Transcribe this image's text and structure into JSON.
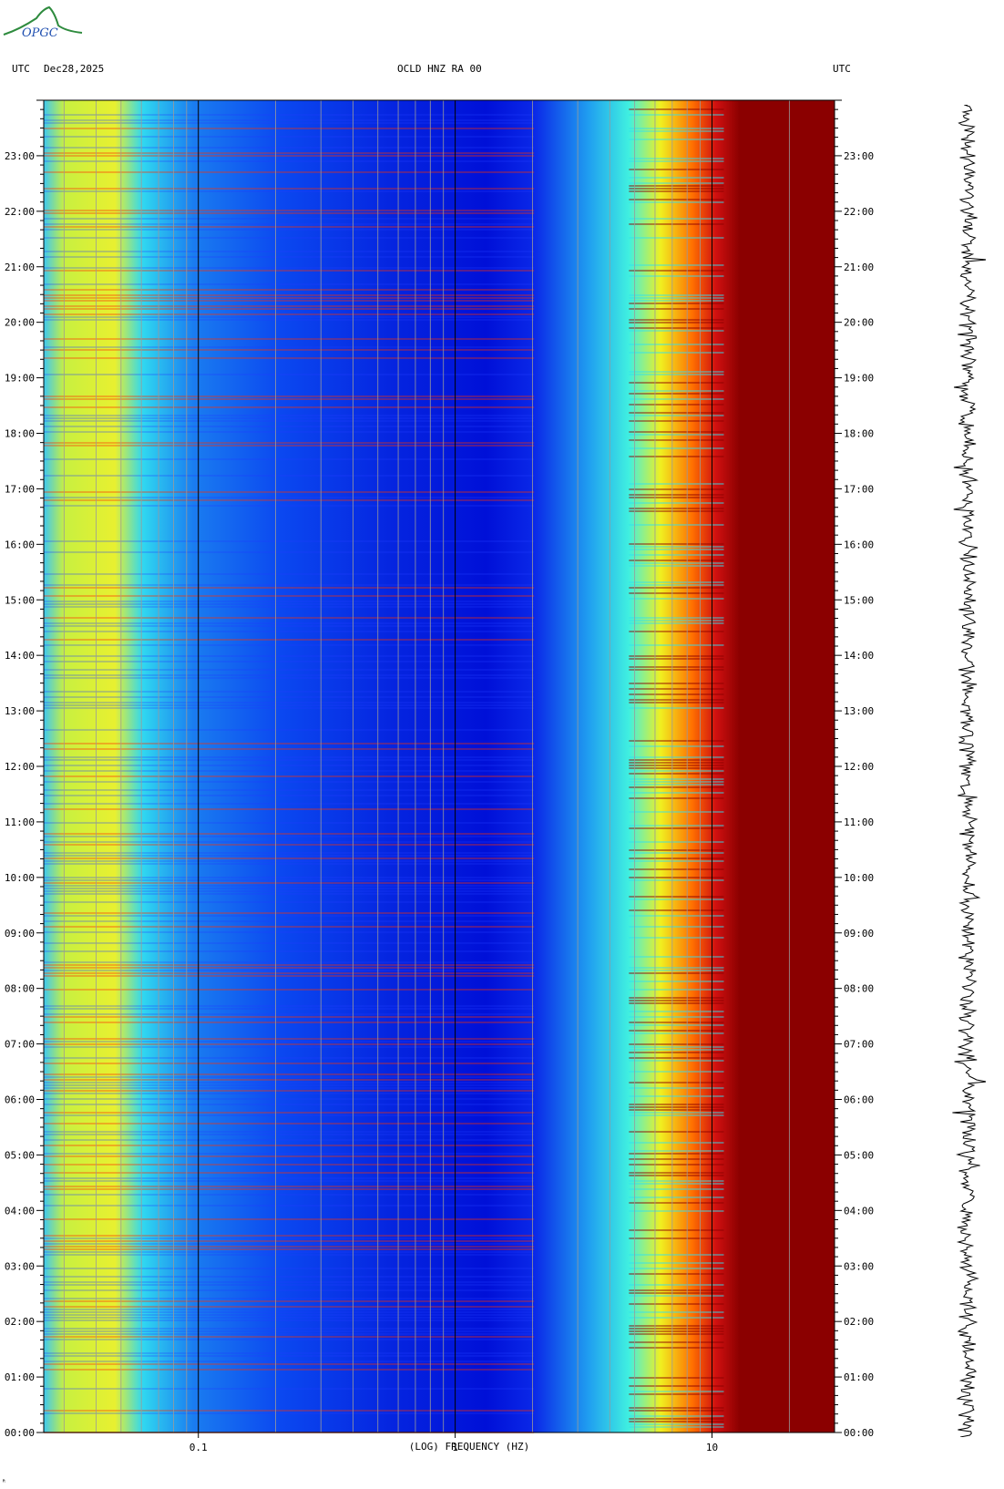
{
  "header": {
    "left_tz": "UTC",
    "date": "Dec28,2025",
    "station": "OCLD HNZ RA 00",
    "right_tz": "UTC"
  },
  "logo": {
    "text": "OPGC",
    "icon": "volcano-logo"
  },
  "chart_data": {
    "type": "heatmap",
    "title": "OCLD HNZ RA 00",
    "xlabel": "(LOG) FREQUENCY (HZ)",
    "xscale": "log",
    "xlim": [
      0.025,
      30
    ],
    "x_ticks": [
      {
        "value": 0.1,
        "label": "0.1"
      },
      {
        "value": 1,
        "label": "1"
      },
      {
        "value": 10,
        "label": "10"
      }
    ],
    "ylabel": "UTC",
    "ylim": [
      "00:00",
      "24:00"
    ],
    "y_ticks": [
      "00:00",
      "01:00",
      "02:00",
      "03:00",
      "04:00",
      "05:00",
      "06:00",
      "07:00",
      "08:00",
      "09:00",
      "10:00",
      "11:00",
      "12:00",
      "13:00",
      "14:00",
      "15:00",
      "16:00",
      "17:00",
      "18:00",
      "19:00",
      "20:00",
      "21:00",
      "22:00",
      "23:00"
    ],
    "colormap": [
      "#00008b",
      "#0000ff",
      "#00ffff",
      "#ffff00",
      "#ff0000",
      "#8b0000"
    ],
    "grid": true
  },
  "side_trace": {
    "icon": "seismogram-trace"
  },
  "corner_mark": "ᴿ"
}
